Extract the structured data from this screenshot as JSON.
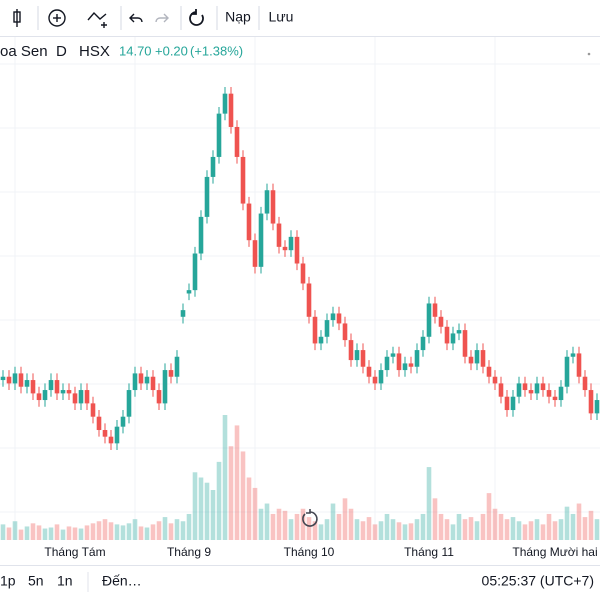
{
  "toolbar": {
    "reload": "Nạp",
    "save": "Lưu"
  },
  "header": {
    "name": "oa Sen",
    "interval": "D",
    "exchange": "HSX",
    "price": "14.70",
    "change": "+0.20",
    "change_pct": "(+1.38%)"
  },
  "footer": {
    "ranges": [
      "1p",
      "5n",
      "1n"
    ],
    "goto": "Đến…",
    "clock": "05:25:37 (UTC+7)"
  },
  "chart_data": {
    "type": "candlestick",
    "up_color": "#26a69a",
    "down_color": "#ef5350",
    "categories": [
      null,
      null,
      null,
      null,
      null,
      null,
      null,
      null,
      null,
      null,
      null,
      null,
      "Tháng Tám",
      null,
      null,
      null,
      null,
      null,
      null,
      null,
      null,
      null,
      null,
      null,
      null,
      null,
      null,
      null,
      null,
      null,
      null,
      "Tháng 9",
      null,
      null,
      null,
      null,
      null,
      null,
      null,
      null,
      null,
      null,
      null,
      null,
      null,
      null,
      null,
      null,
      null,
      null,
      null,
      "Tháng 10",
      null,
      null,
      null,
      null,
      null,
      null,
      null,
      null,
      null,
      null,
      null,
      null,
      null,
      null,
      null,
      null,
      null,
      null,
      null,
      "Tháng 11",
      null,
      null,
      null,
      null,
      null,
      null,
      null,
      null,
      null,
      null,
      null,
      null,
      null,
      null,
      null,
      null,
      null,
      null,
      null,
      null,
      "Tháng Mười hai",
      null,
      null,
      null,
      null,
      null,
      null,
      null
    ],
    "open": [
      15.0,
      15.05,
      14.95,
      15.1,
      14.9,
      15.0,
      14.8,
      14.7,
      14.85,
      15.0,
      14.8,
      14.85,
      14.8,
      14.65,
      14.85,
      14.65,
      14.45,
      14.25,
      14.15,
      14.05,
      14.3,
      14.45,
      14.85,
      15.1,
      14.95,
      15.05,
      14.85,
      14.65,
      15.15,
      15.05,
      15.95,
      16.3,
      16.35,
      16.9,
      17.45,
      18.05,
      18.35,
      19.0,
      19.3,
      18.8,
      18.35,
      17.65,
      17.1,
      16.7,
      17.5,
      17.85,
      17.35,
      17.0,
      16.95,
      17.15,
      16.75,
      16.45,
      15.95,
      15.55,
      15.65,
      15.9,
      16.0,
      15.85,
      15.6,
      15.3,
      15.45,
      15.2,
      15.05,
      14.95,
      15.15,
      15.35,
      15.4,
      15.15,
      15.25,
      15.2,
      15.45,
      15.65,
      16.15,
      15.95,
      15.8,
      15.55,
      15.7,
      15.75,
      15.35,
      15.25,
      15.45,
      15.2,
      15.05,
      14.95,
      14.75,
      14.55,
      14.75,
      14.95,
      14.85,
      14.8,
      14.95,
      14.85,
      14.75,
      14.7,
      14.9,
      15.35,
      15.4,
      15.05,
      14.85,
      14.5
    ],
    "high": [
      15.15,
      15.15,
      15.2,
      15.2,
      15.1,
      15.1,
      14.9,
      14.95,
      15.1,
      15.1,
      14.95,
      14.95,
      14.9,
      14.95,
      14.95,
      14.75,
      14.55,
      14.35,
      14.25,
      14.4,
      14.55,
      14.95,
      15.2,
      15.2,
      15.15,
      15.15,
      14.95,
      15.25,
      15.25,
      15.45,
      16.15,
      16.45,
      17.0,
      17.55,
      18.15,
      18.45,
      19.1,
      19.4,
      19.4,
      18.9,
      18.45,
      17.75,
      17.2,
      17.6,
      17.95,
      17.95,
      17.45,
      17.1,
      17.25,
      17.25,
      16.85,
      16.55,
      16.05,
      15.75,
      16.0,
      16.1,
      16.1,
      15.95,
      15.7,
      15.55,
      15.55,
      15.3,
      15.15,
      15.25,
      15.45,
      15.5,
      15.5,
      15.35,
      15.35,
      15.55,
      15.75,
      16.25,
      16.25,
      16.05,
      15.9,
      15.8,
      15.85,
      15.85,
      15.45,
      15.55,
      15.55,
      15.3,
      15.15,
      15.05,
      14.85,
      14.85,
      15.05,
      15.05,
      14.95,
      15.05,
      15.05,
      14.95,
      14.85,
      15.0,
      15.45,
      15.5,
      15.5,
      15.15,
      14.95,
      14.8
    ],
    "low": [
      14.9,
      14.85,
      14.85,
      14.8,
      14.8,
      14.7,
      14.6,
      14.6,
      14.75,
      14.7,
      14.7,
      14.7,
      14.55,
      14.55,
      14.55,
      14.35,
      14.15,
      14.05,
      13.95,
      13.95,
      14.2,
      14.35,
      14.75,
      14.85,
      14.85,
      14.75,
      14.55,
      14.55,
      14.95,
      14.95,
      15.85,
      16.2,
      16.25,
      16.8,
      17.35,
      17.95,
      18.25,
      18.9,
      18.7,
      18.25,
      17.55,
      17.0,
      16.6,
      16.6,
      17.4,
      17.25,
      16.9,
      16.85,
      16.85,
      16.65,
      16.35,
      15.85,
      15.45,
      15.45,
      15.55,
      15.8,
      15.75,
      15.5,
      15.2,
      15.2,
      15.1,
      14.95,
      14.85,
      14.85,
      15.05,
      15.25,
      15.05,
      15.05,
      15.1,
      15.1,
      15.35,
      15.55,
      15.85,
      15.7,
      15.45,
      15.45,
      15.6,
      15.25,
      15.15,
      15.15,
      15.1,
      14.95,
      14.85,
      14.65,
      14.45,
      14.45,
      14.65,
      14.75,
      14.7,
      14.7,
      14.75,
      14.65,
      14.6,
      14.6,
      14.8,
      15.25,
      14.95,
      14.75,
      14.4,
      14.4
    ],
    "close": [
      15.05,
      14.95,
      15.1,
      14.9,
      15.0,
      14.8,
      14.7,
      14.85,
      15.0,
      14.8,
      14.85,
      14.8,
      14.65,
      14.85,
      14.65,
      14.45,
      14.25,
      14.15,
      14.05,
      14.3,
      14.45,
      14.85,
      15.1,
      14.95,
      15.05,
      14.85,
      14.65,
      15.15,
      15.05,
      15.35,
      16.05,
      16.35,
      16.9,
      17.45,
      18.05,
      18.35,
      19.0,
      19.3,
      18.8,
      18.35,
      17.65,
      17.1,
      16.7,
      17.5,
      17.85,
      17.35,
      17.0,
      16.95,
      17.15,
      16.75,
      16.45,
      15.95,
      15.55,
      15.65,
      15.9,
      16.0,
      15.85,
      15.6,
      15.3,
      15.45,
      15.2,
      15.05,
      14.95,
      15.15,
      15.35,
      15.4,
      15.15,
      15.25,
      15.2,
      15.45,
      15.65,
      16.15,
      15.95,
      15.8,
      15.55,
      15.7,
      15.75,
      15.35,
      15.25,
      15.45,
      15.2,
      15.05,
      14.95,
      14.75,
      14.55,
      14.75,
      14.95,
      14.85,
      14.8,
      14.95,
      14.85,
      14.75,
      14.7,
      14.9,
      15.35,
      15.4,
      15.05,
      14.85,
      14.5,
      14.7
    ],
    "volume": [
      1.5,
      1.2,
      1.8,
      1.0,
      1.3,
      1.6,
      1.4,
      1.1,
      1.2,
      1.5,
      1.0,
      1.3,
      1.2,
      1.1,
      1.4,
      1.6,
      1.8,
      2.0,
      1.7,
      1.5,
      1.4,
      1.6,
      2.0,
      1.3,
      1.2,
      1.5,
      1.8,
      2.2,
      1.6,
      2.0,
      1.8,
      2.5,
      6.5,
      6.0,
      5.5,
      4.8,
      7.5,
      12.0,
      9.0,
      11.0,
      8.5,
      6.0,
      5.0,
      3.0,
      3.5,
      2.5,
      3.0,
      2.8,
      2.0,
      2.5,
      3.0,
      2.2,
      1.8,
      1.5,
      2.0,
      3.5,
      2.5,
      4.0,
      3.0,
      2.0,
      1.8,
      2.2,
      1.5,
      1.8,
      2.5,
      2.0,
      1.7,
      1.5,
      1.6,
      2.0,
      2.5,
      7.0,
      4.0,
      2.5,
      2.0,
      1.5,
      2.5,
      2.0,
      2.2,
      1.8,
      2.5,
      4.5,
      3.0,
      2.5,
      2.0,
      2.2,
      1.8,
      1.5,
      1.8,
      2.0,
      1.5,
      2.5,
      1.8,
      2.0,
      3.2,
      2.5,
      3.5,
      2.2,
      2.8,
      2.0
    ]
  }
}
